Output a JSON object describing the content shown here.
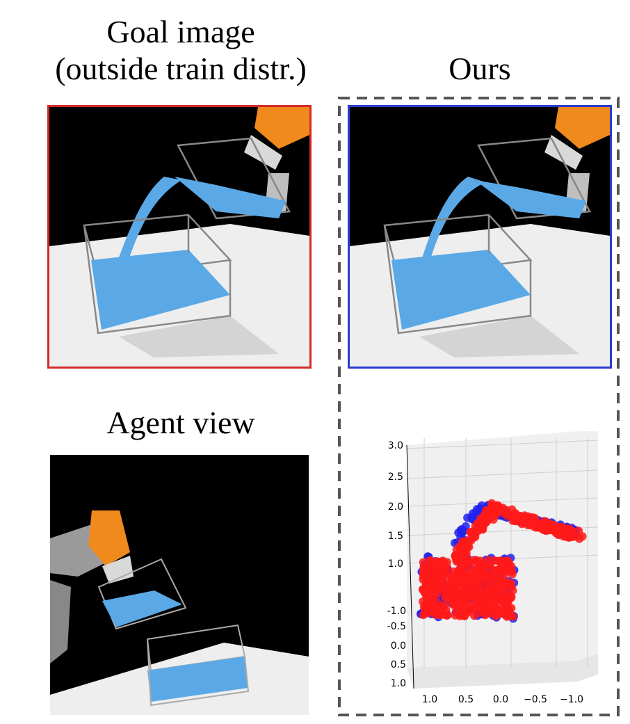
{
  "titles": {
    "goal_line1": "Goal image",
    "goal_line2": "(outside train distr.)",
    "ours": "Ours",
    "agent": "Agent view"
  },
  "colors": {
    "goal_frame": "#d42a2a",
    "ours_frame": "#2a3bd1",
    "dashed_frame": "#555555",
    "water": "#5aa9e6",
    "robot_orange": "#f08a1c",
    "scene_black": "#000000",
    "table": "#eeeeee",
    "points_red": "#ff1a1a",
    "points_blue": "#2222ee"
  },
  "plot": {
    "y_ticks": [
      "3.0",
      "2.5",
      "2.0",
      "1.5",
      "1.0"
    ],
    "lower_ticks": [
      "-1.0",
      "-0.5",
      "0.0",
      "0.5",
      "1.0"
    ],
    "x_ticks": [
      "1.0",
      "0.5",
      "0.0",
      "−0.5",
      "−1.0"
    ]
  }
}
